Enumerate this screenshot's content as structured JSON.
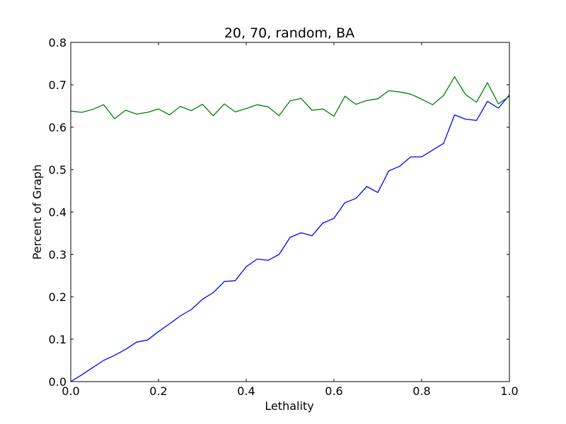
{
  "chart_data": {
    "type": "line",
    "title": "20, 70, random, BA",
    "xlabel": "Lethality",
    "ylabel": "Percent of Graph",
    "xlim": [
      0.0,
      1.0
    ],
    "ylim": [
      0.0,
      0.8
    ],
    "xticks": [
      "0.0",
      "0.2",
      "0.4",
      "0.6",
      "0.8",
      "1.0"
    ],
    "yticks": [
      "0.0",
      "0.1",
      "0.2",
      "0.3",
      "0.4",
      "0.5",
      "0.6",
      "0.7",
      "0.8"
    ],
    "grid": false,
    "x": [
      0.0,
      0.025,
      0.05,
      0.075,
      0.1,
      0.125,
      0.15,
      0.175,
      0.2,
      0.225,
      0.25,
      0.275,
      0.3,
      0.325,
      0.35,
      0.375,
      0.4,
      0.425,
      0.45,
      0.475,
      0.5,
      0.525,
      0.55,
      0.575,
      0.6,
      0.625,
      0.65,
      0.675,
      0.7,
      0.725,
      0.75,
      0.775,
      0.8,
      0.825,
      0.85,
      0.875,
      0.9,
      0.925,
      0.95,
      0.975,
      1.0
    ],
    "series": [
      {
        "color": "#0000ff",
        "values": [
          0.0,
          0.016,
          0.033,
          0.05,
          0.062,
          0.076,
          0.093,
          0.098,
          0.118,
          0.136,
          0.155,
          0.17,
          0.194,
          0.21,
          0.236,
          0.238,
          0.271,
          0.289,
          0.286,
          0.3,
          0.34,
          0.351,
          0.344,
          0.374,
          0.385,
          0.422,
          0.432,
          0.46,
          0.446,
          0.497,
          0.508,
          0.53,
          0.53,
          0.546,
          0.562,
          0.629,
          0.619,
          0.616,
          0.661,
          0.645,
          0.676
        ]
      },
      {
        "color": "#008000",
        "values": [
          0.638,
          0.635,
          0.642,
          0.653,
          0.62,
          0.64,
          0.631,
          0.635,
          0.643,
          0.629,
          0.649,
          0.639,
          0.654,
          0.627,
          0.655,
          0.636,
          0.644,
          0.653,
          0.648,
          0.627,
          0.662,
          0.668,
          0.64,
          0.643,
          0.626,
          0.673,
          0.654,
          0.663,
          0.667,
          0.686,
          0.683,
          0.678,
          0.666,
          0.653,
          0.675,
          0.719,
          0.677,
          0.659,
          0.705,
          0.655,
          0.673
        ]
      }
    ]
  }
}
